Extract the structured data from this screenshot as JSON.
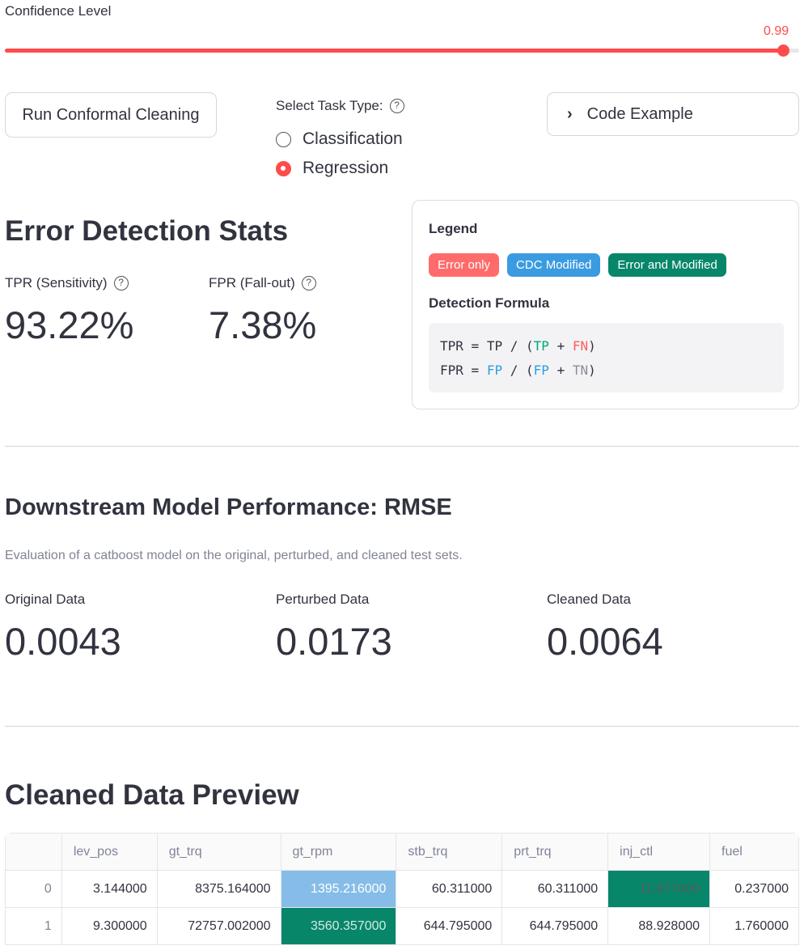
{
  "slider": {
    "label": "Confidence Level",
    "value": "0.99",
    "fraction": 0.98
  },
  "run_button": {
    "label": "Run Conformal Cleaning"
  },
  "task_type": {
    "label": "Select Task Type:",
    "options": [
      {
        "label": "Classification",
        "selected": false
      },
      {
        "label": "Regression",
        "selected": true
      }
    ]
  },
  "code_example": {
    "label": "Code Example"
  },
  "stats": {
    "title": "Error Detection Stats",
    "tpr": {
      "label": "TPR (Sensitivity)",
      "value": "93.22%"
    },
    "fpr": {
      "label": "FPR (Fall-out)",
      "value": "7.38%"
    }
  },
  "legend": {
    "title": "Legend",
    "items": [
      {
        "label": "Error only",
        "color": "#ff6b6b"
      },
      {
        "label": "CDC Modified",
        "color": "#3b9be0"
      },
      {
        "label": "Error and Modified",
        "color": "#07866a"
      }
    ],
    "formula_title": "Detection Formula",
    "formula": {
      "tpr": {
        "lhs": "TPR",
        "eq": "=",
        "num": "TP",
        "div": "/",
        "open": "(",
        "a": "TP",
        "plus": "+",
        "b": "FN",
        "close": ")"
      },
      "fpr": {
        "lhs": "FPR",
        "eq": "=",
        "num": "FP",
        "div": "/",
        "open": "(",
        "a": "FP",
        "plus": "+",
        "b": "TN",
        "close": ")"
      }
    }
  },
  "downstream": {
    "title": "Downstream Model Performance: RMSE",
    "caption": "Evaluation of a catboost model on the original, perturbed, and cleaned test sets.",
    "metrics": [
      {
        "label": "Original Data",
        "value": "0.0043"
      },
      {
        "label": "Perturbed Data",
        "value": "0.0173"
      },
      {
        "label": "Cleaned Data",
        "value": "0.0064"
      }
    ]
  },
  "preview": {
    "title": "Cleaned Data Preview",
    "columns": [
      "",
      "lev_pos",
      "gt_trq",
      "gt_rpm",
      "stb_trq",
      "prt_trq",
      "inj_ctl",
      "fuel"
    ],
    "rows": [
      {
        "cells": [
          "0",
          "3.144000",
          "8375.164000",
          "1395.216000",
          "60.311000",
          "60.311000",
          "11.977000",
          "0.237000"
        ]
      },
      {
        "cells": [
          "1",
          "9.300000",
          "72757.002000",
          "3560.357000",
          "644.795000",
          "644.795000",
          "88.928000",
          "1.760000"
        ]
      }
    ],
    "highlight_colors": {
      "cdc_modified": "#85bde8",
      "error_and_modified": "#07866a"
    }
  }
}
